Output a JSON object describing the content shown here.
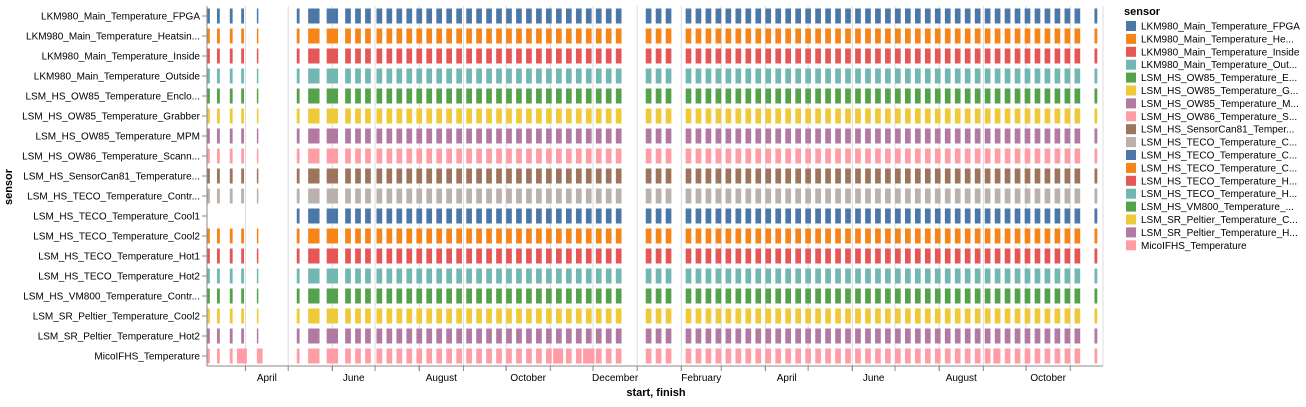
{
  "chart_data": {
    "type": "gantt",
    "xlabel": "start, finish",
    "ylabel": "sensor",
    "x_ticks": [
      "April",
      "June",
      "August",
      "October",
      "December",
      "February",
      "April",
      "June",
      "August",
      "October"
    ],
    "x_range": [
      "2021-03-05",
      "2022-11-24"
    ],
    "grid": true,
    "legend": {
      "title": "sensor",
      "position": "right",
      "entries": [
        {
          "label": "LKM980_Main_Temperature_FPGA",
          "color": "#4C78A8"
        },
        {
          "label": "LKM980_Main_Temperature_He...",
          "color": "#F58518"
        },
        {
          "label": "LKM980_Main_Temperature_Inside",
          "color": "#E45756"
        },
        {
          "label": "LKM980_Main_Temperature_Out...",
          "color": "#72B7B2"
        },
        {
          "label": "LSM_HS_OW85_Temperature_E...",
          "color": "#54A24B"
        },
        {
          "label": "LSM_HS_OW85_Temperature_G...",
          "color": "#EECA3B"
        },
        {
          "label": "LSM_HS_OW85_Temperature_M...",
          "color": "#B279A2"
        },
        {
          "label": "LSM_HS_OW86_Temperature_S...",
          "color": "#FF9DA6"
        },
        {
          "label": "LSM_HS_SensorCan81_Temper...",
          "color": "#9D755D"
        },
        {
          "label": "LSM_HS_TECO_Temperature_C...",
          "color": "#BAB0AC"
        },
        {
          "label": "LSM_HS_TECO_Temperature_C...",
          "color": "#4C78A8"
        },
        {
          "label": "LSM_HS_TECO_Temperature_C...",
          "color": "#F58518"
        },
        {
          "label": "LSM_HS_TECO_Temperature_H...",
          "color": "#E45756"
        },
        {
          "label": "LSM_HS_TECO_Temperature_H...",
          "color": "#72B7B2"
        },
        {
          "label": "LSM_HS_VM800_Temperature_...",
          "color": "#54A24B"
        },
        {
          "label": "LSM_SR_Peltier_Temperature_C...",
          "color": "#EECA3B"
        },
        {
          "label": "LSM_SR_Peltier_Temperature_H...",
          "color": "#B279A2"
        },
        {
          "label": "MicoIFHS_Temperature",
          "color": "#FF9DA6"
        }
      ]
    },
    "categories": [
      "LKM980_Main_Temperature_FPGA",
      "LKM980_Main_Temperature_Heatsin...",
      "LKM980_Main_Temperature_Inside",
      "LKM980_Main_Temperature_Outside",
      "LSM_HS_OW85_Temperature_Enclo...",
      "LSM_HS_OW85_Temperature_Grabber",
      "LSM_HS_OW85_Temperature_MPM",
      "LSM_HS_OW86_Temperature_Scann...",
      "LSM_HS_SensorCan81_Temperature...",
      "LSM_HS_TECO_Temperature_Contr...",
      "LSM_HS_TECO_Temperature_Cool1",
      "LSM_HS_TECO_Temperature_Cool2",
      "LSM_HS_TECO_Temperature_Hot1",
      "LSM_HS_TECO_Temperature_Hot2",
      "LSM_HS_VM800_Temperature_Contr...",
      "LSM_SR_Peltier_Temperature_Cool2",
      "LSM_SR_Peltier_Temperature_Hot2",
      "MicoIFHS_Temperature"
    ],
    "series_colors": [
      "#4C78A8",
      "#F58518",
      "#E45756",
      "#72B7B2",
      "#54A24B",
      "#EECA3B",
      "#B279A2",
      "#FF9DA6",
      "#9D755D",
      "#BAB0AC",
      "#4C78A8",
      "#F58518",
      "#E45756",
      "#72B7B2",
      "#54A24B",
      "#EECA3B",
      "#B279A2",
      "#FF9DA6"
    ],
    "active_periods": [
      [
        "2021-03-05",
        "2021-03-07"
      ],
      [
        "2021-03-12",
        "2021-03-14"
      ],
      [
        "2021-03-21",
        "2021-03-23"
      ],
      [
        "2021-03-29",
        "2021-03-31"
      ],
      [
        "2021-04-09",
        "2021-04-10"
      ],
      [
        "2021-05-07",
        "2021-05-09"
      ],
      [
        "2021-05-15",
        "2021-05-23"
      ],
      [
        "2021-05-28",
        "2021-06-05"
      ],
      [
        "2021-06-10",
        "2021-06-14"
      ],
      [
        "2021-06-17",
        "2021-06-21"
      ],
      [
        "2021-06-24",
        "2021-06-28"
      ],
      [
        "2021-07-02",
        "2021-07-06"
      ],
      [
        "2021-07-09",
        "2021-07-13"
      ],
      [
        "2021-07-16",
        "2021-07-20"
      ],
      [
        "2021-07-23",
        "2021-07-27"
      ],
      [
        "2021-07-30",
        "2021-08-03"
      ],
      [
        "2021-08-06",
        "2021-08-10"
      ],
      [
        "2021-08-13",
        "2021-08-17"
      ],
      [
        "2021-08-20",
        "2021-08-24"
      ],
      [
        "2021-08-27",
        "2021-08-31"
      ],
      [
        "2021-09-03",
        "2021-09-07"
      ],
      [
        "2021-09-10",
        "2021-09-14"
      ],
      [
        "2021-09-17",
        "2021-09-21"
      ],
      [
        "2021-09-24",
        "2021-09-28"
      ],
      [
        "2021-10-01",
        "2021-10-05"
      ],
      [
        "2021-10-08",
        "2021-10-12"
      ],
      [
        "2021-10-15",
        "2021-10-19"
      ],
      [
        "2021-10-22",
        "2021-10-26"
      ],
      [
        "2021-10-29",
        "2021-11-02"
      ],
      [
        "2021-11-05",
        "2021-11-09"
      ],
      [
        "2021-11-12",
        "2021-11-16"
      ],
      [
        "2021-11-19",
        "2021-11-23"
      ],
      [
        "2021-11-26",
        "2021-11-30"
      ],
      [
        "2021-12-03",
        "2021-12-07"
      ],
      [
        "2021-12-10",
        "2021-12-14"
      ],
      [
        "2021-12-17",
        "2021-12-21"
      ],
      [
        "2022-01-07",
        "2022-01-11"
      ],
      [
        "2022-01-14",
        "2022-01-18"
      ],
      [
        "2022-01-21",
        "2022-01-25"
      ],
      [
        "2022-02-04",
        "2022-02-08"
      ],
      [
        "2022-02-11",
        "2022-02-15"
      ],
      [
        "2022-02-18",
        "2022-02-22"
      ],
      [
        "2022-02-25",
        "2022-03-01"
      ],
      [
        "2022-03-04",
        "2022-03-08"
      ],
      [
        "2022-03-11",
        "2022-03-15"
      ],
      [
        "2022-03-18",
        "2022-03-22"
      ],
      [
        "2022-03-25",
        "2022-03-29"
      ],
      [
        "2022-04-01",
        "2022-04-05"
      ],
      [
        "2022-04-08",
        "2022-04-12"
      ],
      [
        "2022-04-15",
        "2022-04-19"
      ],
      [
        "2022-04-22",
        "2022-04-26"
      ],
      [
        "2022-04-29",
        "2022-05-03"
      ],
      [
        "2022-05-06",
        "2022-05-10"
      ],
      [
        "2022-05-13",
        "2022-05-17"
      ],
      [
        "2022-05-20",
        "2022-05-24"
      ],
      [
        "2022-05-27",
        "2022-05-31"
      ],
      [
        "2022-06-03",
        "2022-06-07"
      ],
      [
        "2022-06-10",
        "2022-06-14"
      ],
      [
        "2022-06-17",
        "2022-06-21"
      ],
      [
        "2022-06-24",
        "2022-06-28"
      ],
      [
        "2022-07-01",
        "2022-07-05"
      ],
      [
        "2022-07-08",
        "2022-07-12"
      ],
      [
        "2022-07-15",
        "2022-07-19"
      ],
      [
        "2022-07-22",
        "2022-07-26"
      ],
      [
        "2022-07-29",
        "2022-08-02"
      ],
      [
        "2022-08-05",
        "2022-08-09"
      ],
      [
        "2022-08-12",
        "2022-08-16"
      ],
      [
        "2022-08-19",
        "2022-08-23"
      ],
      [
        "2022-08-26",
        "2022-08-30"
      ],
      [
        "2022-09-02",
        "2022-09-06"
      ],
      [
        "2022-09-09",
        "2022-09-13"
      ],
      [
        "2022-09-16",
        "2022-09-20"
      ],
      [
        "2022-09-23",
        "2022-09-27"
      ],
      [
        "2022-09-30",
        "2022-10-04"
      ],
      [
        "2022-10-07",
        "2022-10-11"
      ],
      [
        "2022-10-14",
        "2022-10-18"
      ],
      [
        "2022-10-21",
        "2022-10-25"
      ],
      [
        "2022-10-28",
        "2022-11-01"
      ],
      [
        "2022-11-04",
        "2022-11-08"
      ],
      [
        "2022-11-18",
        "2022-11-20"
      ]
    ],
    "cool1_missing_before": "2021-05-07",
    "micoifhs_extra_periods": [
      [
        "2021-03-26",
        "2021-04-02"
      ],
      [
        "2021-04-10",
        "2021-04-13"
      ],
      [
        "2021-11-03",
        "2021-11-10"
      ],
      [
        "2021-11-24",
        "2021-12-02"
      ],
      [
        "2022-09-08",
        "2022-09-12"
      ]
    ]
  }
}
